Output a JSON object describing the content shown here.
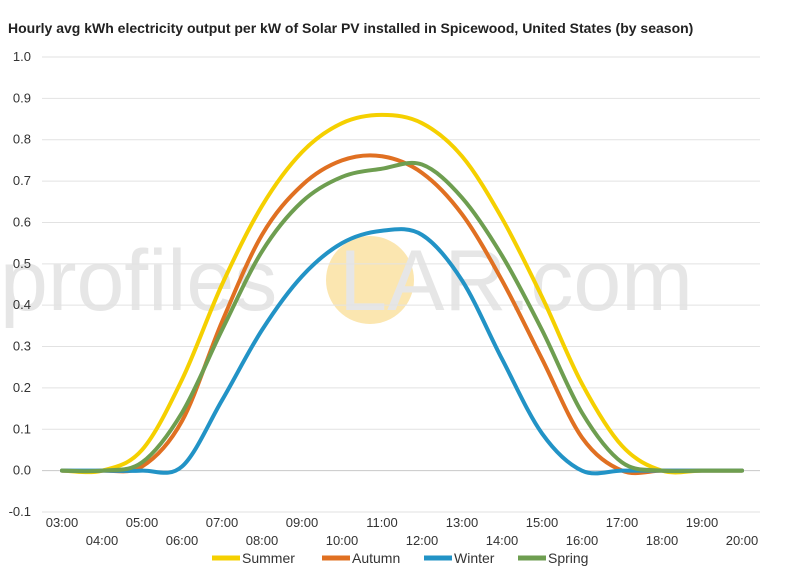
{
  "chart_data": {
    "type": "line",
    "title": "Hourly avg kWh electricity output per kW of Solar PV installed in Spicewood, United States (by season)",
    "xlabel": "",
    "ylabel": "",
    "ylim": [
      -0.1,
      1.0
    ],
    "y_ticks": [
      -0.1,
      0.0,
      0.1,
      0.2,
      0.3,
      0.4,
      0.5,
      0.6,
      0.7,
      0.8,
      0.9,
      1.0
    ],
    "y_tick_labels": [
      "-0.1",
      "0.0",
      "0.1",
      "0.2",
      "0.3",
      "0.4",
      "0.5",
      "0.6",
      "0.7",
      "0.8",
      "0.9",
      "1.0"
    ],
    "categories": [
      "03:00",
      "04:00",
      "05:00",
      "06:00",
      "07:00",
      "08:00",
      "09:00",
      "10:00",
      "11:00",
      "12:00",
      "13:00",
      "14:00",
      "15:00",
      "16:00",
      "17:00",
      "18:00",
      "19:00",
      "20:00"
    ],
    "grid": true,
    "legend_position": "bottom",
    "series": [
      {
        "name": "Summer",
        "color": "#f5d000",
        "values": [
          0.0,
          0.0,
          0.05,
          0.22,
          0.45,
          0.64,
          0.77,
          0.84,
          0.86,
          0.84,
          0.76,
          0.61,
          0.42,
          0.21,
          0.06,
          0.0,
          0.0,
          0.0
        ]
      },
      {
        "name": "Autumn",
        "color": "#e07022",
        "values": [
          0.0,
          0.0,
          0.01,
          0.12,
          0.36,
          0.57,
          0.69,
          0.75,
          0.76,
          0.72,
          0.62,
          0.46,
          0.27,
          0.08,
          0.0,
          0.0,
          0.0,
          0.0
        ]
      },
      {
        "name": "Winter",
        "color": "#2293c6",
        "values": [
          0.0,
          0.0,
          0.0,
          0.01,
          0.17,
          0.34,
          0.47,
          0.55,
          0.58,
          0.57,
          0.46,
          0.27,
          0.09,
          0.0,
          0.0,
          0.0,
          0.0,
          0.0
        ]
      },
      {
        "name": "Spring",
        "color": "#6e9e50",
        "values": [
          0.0,
          0.0,
          0.02,
          0.14,
          0.34,
          0.53,
          0.65,
          0.71,
          0.73,
          0.74,
          0.66,
          0.52,
          0.34,
          0.14,
          0.02,
          0.0,
          0.0,
          0.0
        ]
      }
    ]
  },
  "watermark": {
    "text_left": "profile",
    "text_s": "s",
    "text_right": "LAR.com",
    "sun_color": "#fbe6b0"
  }
}
